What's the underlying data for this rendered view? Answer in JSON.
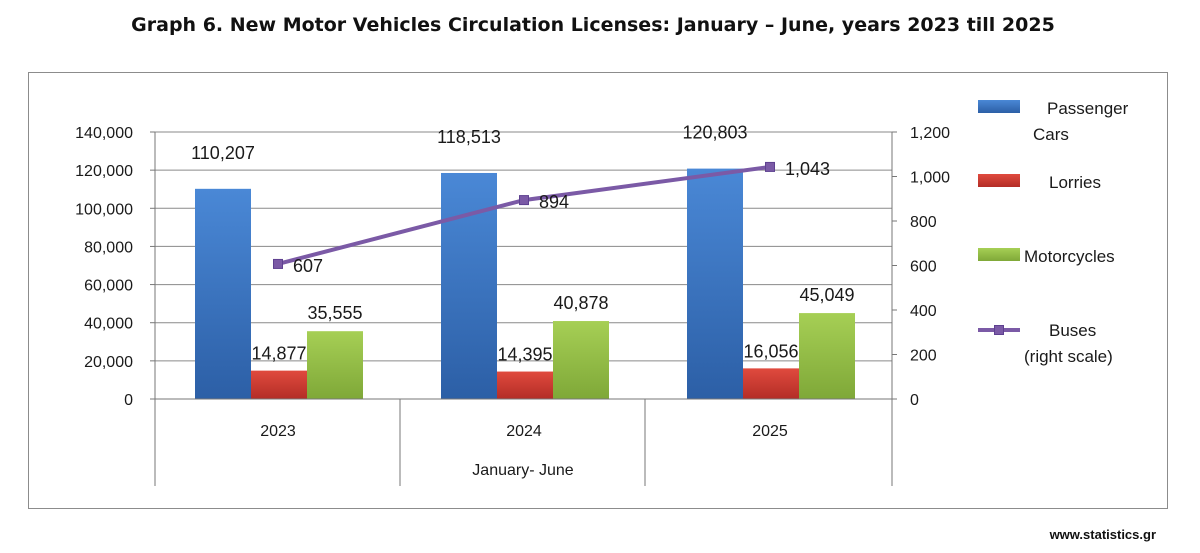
{
  "title": "Graph 6. New Motor Vehicles Circulation Licenses: January – June, years 2023 till 2025",
  "footer": "www.statistics.gr",
  "chart_data": {
    "type": "bar",
    "categories": [
      "2023",
      "2024",
      "2025"
    ],
    "xlabel": "January- June",
    "ylim_left": [
      0,
      140000
    ],
    "yticks_left": [
      "0",
      "20,000",
      "40,000",
      "60,000",
      "80,000",
      "100,000",
      "120,000",
      "140,000"
    ],
    "ylim_right": [
      0,
      1200
    ],
    "yticks_right": [
      "0",
      "200",
      "400",
      "600",
      "800",
      "1,000",
      "1,200"
    ],
    "grid": true,
    "legend_position": "right",
    "series": [
      {
        "name": "Passenger Cars",
        "legend_lines": [
          "Passenger",
          "Cars"
        ],
        "type": "bar",
        "axis": "left",
        "color": "#3a76c4",
        "values": [
          110207,
          118513,
          120803
        ],
        "labels": [
          "110,207",
          "118,513",
          "120,803"
        ]
      },
      {
        "name": "Lorries",
        "legend_lines": [
          "Lorries"
        ],
        "type": "bar",
        "axis": "left",
        "color": "#cc3a32",
        "values": [
          14877,
          14395,
          16056
        ],
        "labels": [
          "14,877",
          "14,395",
          "16,056"
        ]
      },
      {
        "name": "Motorcycles",
        "legend_lines": [
          "Motorcycles"
        ],
        "type": "bar",
        "axis": "left",
        "color": "#94c047",
        "values": [
          35555,
          40878,
          45049
        ],
        "labels": [
          "35,555",
          "40,878",
          "45,049"
        ]
      },
      {
        "name": "Buses (right scale)",
        "legend_lines": [
          "Buses",
          "(right scale)"
        ],
        "type": "line",
        "axis": "right",
        "color": "#7b5aa6",
        "values": [
          607,
          894,
          1043
        ],
        "labels": [
          "607",
          "894",
          "1,043"
        ]
      }
    ]
  }
}
